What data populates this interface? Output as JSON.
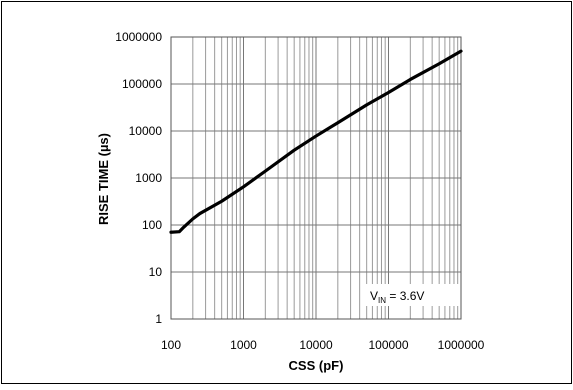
{
  "chart_data": {
    "type": "line",
    "xlabel": "CSS (pF)",
    "ylabel": "RISE TIME (µs)",
    "x_scale": "log",
    "y_scale": "log",
    "xlim": [
      100,
      1000000
    ],
    "ylim": [
      1,
      1000000
    ],
    "x_ticks": [
      100,
      1000,
      10000,
      100000,
      1000000
    ],
    "x_tick_labels": [
      "100",
      "1000",
      "10000",
      "100000",
      "1000000"
    ],
    "y_ticks": [
      1,
      10,
      100,
      1000,
      10000,
      100000,
      1000000
    ],
    "y_tick_labels": [
      "1",
      "10",
      "100",
      "1000",
      "10000",
      "100000",
      "1000000"
    ],
    "grid": true,
    "annotation": {
      "prefix": "V",
      "subscript": "IN",
      "suffix": " = 3.6V"
    },
    "series": [
      {
        "x": [
          100,
          130,
          150,
          200,
          250,
          500,
          1000,
          2000,
          5000,
          10000,
          20000,
          50000,
          100000,
          200000,
          500000,
          1000000
        ],
        "y": [
          70,
          72,
          90,
          135,
          175,
          320,
          650,
          1400,
          3900,
          7800,
          15000,
          36000,
          66000,
          125000,
          270000,
          500000
        ]
      }
    ]
  }
}
